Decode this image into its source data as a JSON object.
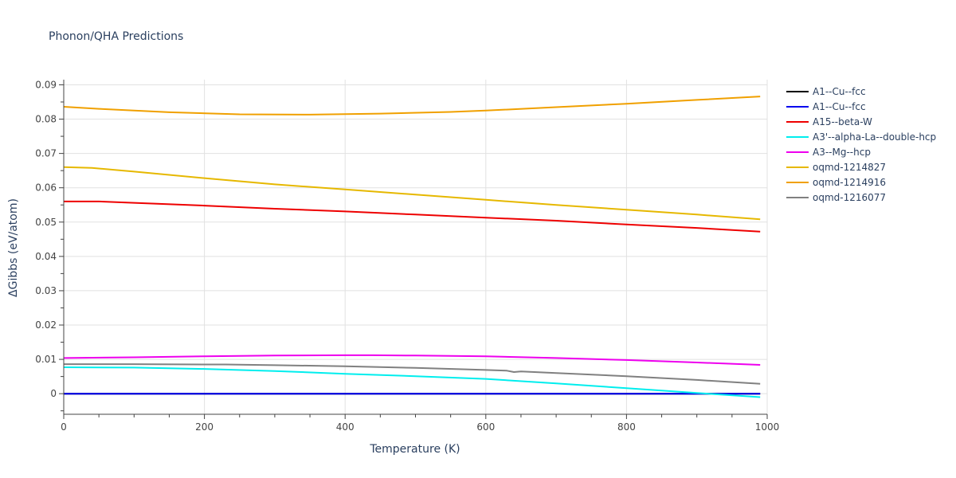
{
  "chart_data": {
    "type": "line",
    "title": "Phonon/QHA Predictions",
    "xlabel": "Temperature (K)",
    "ylabel": "ΔGibbs (eV/atom)",
    "xlim": [
      0,
      1000
    ],
    "ylim": [
      -0.006,
      0.0915
    ],
    "x_ticks": [
      0,
      200,
      400,
      600,
      800,
      1000
    ],
    "x_tick_labels": [
      "0",
      "200",
      "400",
      "600",
      "800",
      "1000"
    ],
    "y_ticks": [
      0,
      0.01,
      0.02,
      0.03,
      0.04,
      0.05,
      0.06,
      0.07,
      0.08,
      0.09
    ],
    "y_tick_labels": [
      "0",
      "0.01",
      "0.02",
      "0.03",
      "0.04",
      "0.05",
      "0.06",
      "0.07",
      "0.08",
      "0.09"
    ],
    "grid": true,
    "legend_position": "right",
    "series": [
      {
        "name": "A1--Cu--fcc",
        "color": "#000000",
        "x": [
          0,
          990
        ],
        "y": [
          0.0,
          0.0
        ]
      },
      {
        "name": "A1--Cu--fcc",
        "color": "#0000ee",
        "x": [
          0,
          990
        ],
        "y": [
          0.0,
          0.0
        ]
      },
      {
        "name": "A15--beta-W",
        "color": "#ee0000",
        "x": [
          0,
          50,
          100,
          200,
          300,
          400,
          500,
          600,
          700,
          800,
          900,
          990
        ],
        "y": [
          0.056,
          0.056,
          0.0556,
          0.0548,
          0.0539,
          0.0531,
          0.0522,
          0.0513,
          0.0504,
          0.0493,
          0.0483,
          0.0472
        ]
      },
      {
        "name": "A3'--alpha-La--double-hcp",
        "color": "#00eeee",
        "x": [
          0,
          100,
          200,
          300,
          400,
          500,
          600,
          700,
          800,
          900,
          990
        ],
        "y": [
          0.0077,
          0.0076,
          0.0072,
          0.0066,
          0.0058,
          0.0051,
          0.0043,
          0.003,
          0.0016,
          0.0002,
          -0.001
        ]
      },
      {
        "name": "A3--Mg--hcp",
        "color": "#ee00ee",
        "x": [
          0,
          100,
          200,
          300,
          400,
          440,
          500,
          600,
          700,
          800,
          900,
          990
        ],
        "y": [
          0.0104,
          0.0106,
          0.0109,
          0.0111,
          0.0112,
          0.0112,
          0.0111,
          0.0109,
          0.0104,
          0.0098,
          0.0091,
          0.0084
        ]
      },
      {
        "name": "oqmd-1214827",
        "color": "#e6b800",
        "x": [
          0,
          40,
          100,
          200,
          300,
          400,
          500,
          600,
          700,
          800,
          900,
          990
        ],
        "y": [
          0.066,
          0.0658,
          0.0647,
          0.0628,
          0.061,
          0.0595,
          0.058,
          0.0565,
          0.055,
          0.0536,
          0.0522,
          0.0508
        ]
      },
      {
        "name": "oqmd-1214916",
        "color": "#f0a000",
        "x": [
          0,
          50,
          150,
          250,
          350,
          450,
          550,
          600,
          700,
          800,
          900,
          990
        ],
        "y": [
          0.0836,
          0.083,
          0.082,
          0.0814,
          0.0813,
          0.0816,
          0.0821,
          0.0825,
          0.0835,
          0.0845,
          0.0856,
          0.0866
        ]
      },
      {
        "name": "oqmd-1216077",
        "color": "#808080",
        "x": [
          0,
          100,
          200,
          230,
          300,
          400,
          500,
          600,
          630,
          640,
          650,
          700,
          800,
          900,
          990
        ],
        "y": [
          0.0086,
          0.0086,
          0.0085,
          0.0085,
          0.0083,
          0.008,
          0.0075,
          0.0069,
          0.0067,
          0.0063,
          0.0065,
          0.006,
          0.0051,
          0.004,
          0.0029
        ]
      }
    ]
  }
}
